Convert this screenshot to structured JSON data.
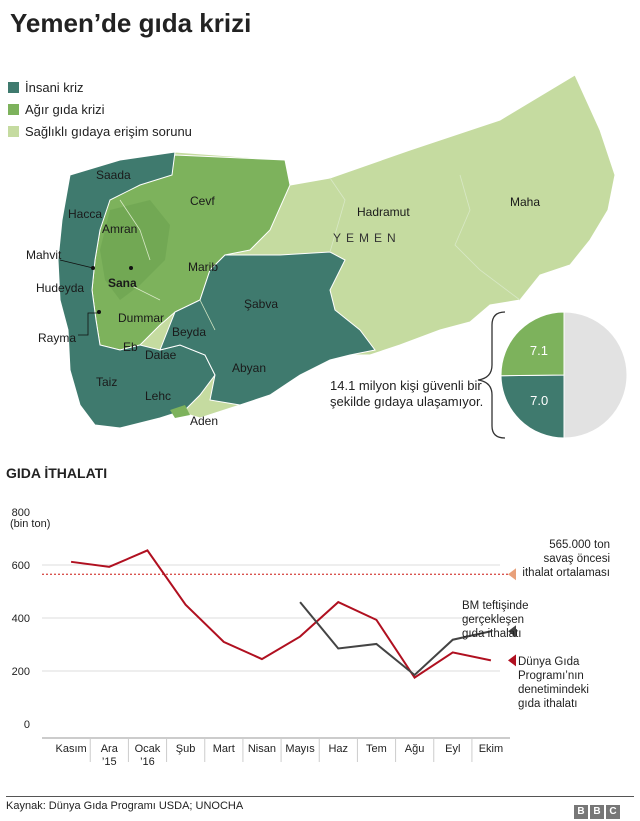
{
  "title": "Yemen’de gıda krizi",
  "legend": [
    {
      "label": "İnsani kriz",
      "color": "#3f7a6e"
    },
    {
      "label": "Ağır gıda krizi",
      "color": "#7db25c"
    },
    {
      "label": "Sağlıklı gıdaya erişim sorunu",
      "color": "#c5dba0"
    }
  ],
  "map": {
    "country": "YEMEN",
    "regions": {
      "saada": "Saada",
      "hacca": "Hacca",
      "amran": "Amran",
      "cevf": "Cevf",
      "hadramut": "Hadramut",
      "maha": "Maha",
      "mahvit": "Mahvit",
      "hudeyda": "Hudeyda",
      "sana": "Sana",
      "marib": "Marib",
      "sabva": "Şabva",
      "dummar": "Dummar",
      "rayma": "Rayma",
      "beyda": "Beyda",
      "eb": "Eb",
      "dalae": "Dalae",
      "abyan": "Abyan",
      "taiz": "Taiz",
      "lehc": "Lehc",
      "aden": "Aden"
    }
  },
  "pie": {
    "note": "14.1 milyon kişi güvenli bir şekilde gıdaya ulaşamıyor.",
    "slices": [
      {
        "label": "7.1",
        "value": 7.1,
        "color": "#7db25c"
      },
      {
        "label": "7.0",
        "value": 7.0,
        "color": "#3f7a6e"
      },
      {
        "label": "",
        "value": 14.1,
        "color": "#e2e2e2"
      }
    ]
  },
  "section_title": "GIDA İTHALATI",
  "chart_data": {
    "type": "line",
    "ylabel": "(bin ton)",
    "ylim": [
      0,
      800
    ],
    "yticks": [
      "0",
      "200",
      "400",
      "600",
      "800"
    ],
    "categories": [
      "Kasım",
      "Ara\n’15",
      "Ocak\n’16",
      "Şub",
      "Mart",
      "Nisan",
      "Mayıs",
      "Haz",
      "Tem",
      "Ağu",
      "Eyl",
      "Ekim"
    ],
    "series": [
      {
        "name": "Dünya Gıda Programı’nın denetimindeki gıda ithalatı",
        "color": "#b01020",
        "values": [
          612,
          593,
          655,
          450,
          310,
          245,
          330,
          460,
          393,
          175,
          270,
          240
        ]
      },
      {
        "name": "BM teftişinde gerçekleşen gıda ithalatı",
        "color": "#444444",
        "values": [
          null,
          null,
          null,
          null,
          null,
          null,
          460,
          285,
          302,
          185,
          318,
          350
        ]
      }
    ],
    "reference": {
      "value": 565,
      "label": "565.000 ton savaş öncesi ithalat ortalaması",
      "color": "#d9534f"
    },
    "annotations": {
      "reference": "565.000 ton\nsavaş öncesi\nithalat ortalaması",
      "bm": "BM teftişinde\ngerçekleşen\ngıda ithalatı",
      "wfp": "Dünya Gıda\nProgramı’nın\ndenetimindeki\ngıda ithalatı"
    }
  },
  "source": "Kaynak: Dünya Gıda Programı USDA; UNOCHA",
  "brand": [
    "B",
    "B",
    "C"
  ]
}
